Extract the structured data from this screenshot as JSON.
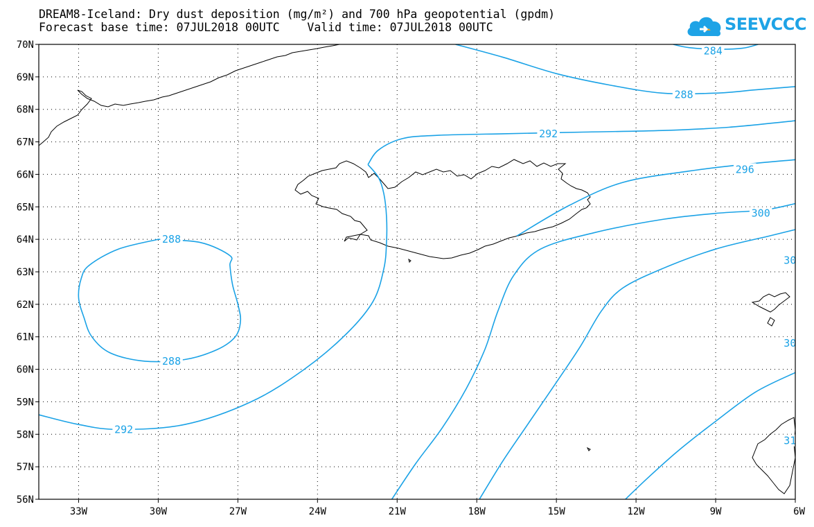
{
  "title": {
    "line1": "DREAM8-Iceland: Dry dust deposition (mg/m²) and 700 hPa geopotential (gpdm)",
    "line2": "Forecast base time: 07JUL2018 00UTC    Valid time: 07JUL2018 00UTC"
  },
  "logo": {
    "text": "SEEVCCC",
    "icon": "cloud-icon",
    "color": "#1ea3e6"
  },
  "colors": {
    "contour": "#1aa2e6",
    "coast": "#000000",
    "grid": "#000000"
  },
  "map": {
    "lon_range": [
      -34.5,
      -6
    ],
    "lat_range": [
      56,
      70
    ],
    "lon_ticks": [
      {
        "value": -33,
        "label": "33W"
      },
      {
        "value": -30,
        "label": "30W"
      },
      {
        "value": -27,
        "label": "27W"
      },
      {
        "value": -24,
        "label": "24W"
      },
      {
        "value": -21,
        "label": "21W"
      },
      {
        "value": -18,
        "label": "18W"
      },
      {
        "value": -15,
        "label": "15W"
      },
      {
        "value": -12,
        "label": "12W"
      },
      {
        "value": -9,
        "label": "9W"
      },
      {
        "value": -6,
        "label": "6W"
      }
    ],
    "lat_ticks": [
      {
        "value": 70,
        "label": "70N"
      },
      {
        "value": 69,
        "label": "69N"
      },
      {
        "value": 68,
        "label": "68N"
      },
      {
        "value": 67,
        "label": "67N"
      },
      {
        "value": 66,
        "label": "66N"
      },
      {
        "value": 65,
        "label": "65N"
      },
      {
        "value": 64,
        "label": "64N"
      },
      {
        "value": 63,
        "label": "63N"
      },
      {
        "value": 62,
        "label": "62N"
      },
      {
        "value": 61,
        "label": "61N"
      },
      {
        "value": 60,
        "label": "60N"
      },
      {
        "value": 59,
        "label": "59N"
      },
      {
        "value": 58,
        "label": "58N"
      },
      {
        "value": 57,
        "label": "57N"
      },
      {
        "value": 56,
        "label": "56N"
      }
    ],
    "contours": [
      {
        "label": "284",
        "labels_at": [
          [
            -9.1,
            69.8
          ]
        ],
        "points": [
          [
            -10.6,
            70
          ],
          [
            -10,
            69.9
          ],
          [
            -9,
            69.85
          ],
          [
            -8,
            69.88
          ],
          [
            -7.4,
            70
          ]
        ]
      },
      {
        "label": "288",
        "labels_at": [
          [
            -10.2,
            68.45
          ]
        ],
        "points": [
          [
            -18.8,
            70
          ],
          [
            -17,
            69.6
          ],
          [
            -15,
            69.1
          ],
          [
            -13,
            68.75
          ],
          [
            -11,
            68.5
          ],
          [
            -9,
            68.5
          ],
          [
            -7.5,
            68.6
          ],
          [
            -6,
            68.7
          ]
        ]
      },
      {
        "label": "292",
        "labels_at": [
          [
            -15.3,
            67.25
          ]
        ],
        "points": [
          [
            -22.1,
            66.3
          ],
          [
            -21.7,
            66.75
          ],
          [
            -20.8,
            67.1
          ],
          [
            -19.5,
            67.2
          ],
          [
            -17,
            67.25
          ],
          [
            -14,
            67.3
          ],
          [
            -11,
            67.35
          ],
          [
            -8.5,
            67.45
          ],
          [
            -6,
            67.65
          ]
        ]
      },
      {
        "label": "296",
        "labels_at": [
          [
            -7.9,
            66.15
          ]
        ],
        "points": [
          [
            -22.1,
            66.3
          ],
          [
            -21.7,
            65.9
          ],
          [
            -21.5,
            65.4
          ],
          [
            -21.4,
            64.7
          ],
          [
            -21.4,
            63.9
          ],
          [
            -21.5,
            63.1
          ],
          [
            -21.9,
            62.1
          ],
          [
            -22.9,
            61.1
          ],
          [
            -24.5,
            60
          ],
          [
            -26.5,
            59
          ],
          [
            -29,
            58.3
          ],
          [
            -31.5,
            58.15
          ],
          [
            -33,
            58.3
          ],
          [
            -34.5,
            58.6
          ]
        ]
      },
      {
        "label": "292",
        "labels_at": [
          [
            -31.3,
            58.15
          ]
        ],
        "points": []
      },
      {
        "label": "300",
        "labels_at": [
          [
            -7.3,
            64.8
          ]
        ],
        "points": [
          [
            -16.5,
            64.1
          ],
          [
            -14.5,
            65.05
          ],
          [
            -12.5,
            65.75
          ],
          [
            -10,
            66.1
          ],
          [
            -8,
            66.3
          ],
          [
            -6,
            66.45
          ]
        ]
      },
      {
        "label": "30",
        "labels_at": [
          [
            -6.2,
            63.35
          ]
        ],
        "points": [
          [
            -21.2,
            56
          ],
          [
            -20.3,
            57.1
          ],
          [
            -19.3,
            58.2
          ],
          [
            -18.4,
            59.4
          ],
          [
            -17.7,
            60.6
          ],
          [
            -17.2,
            61.8
          ],
          [
            -16.6,
            62.9
          ],
          [
            -15.6,
            63.7
          ],
          [
            -13.6,
            64.2
          ],
          [
            -11.1,
            64.6
          ],
          [
            -9,
            64.8
          ],
          [
            -7.2,
            64.9
          ],
          [
            -6,
            65.1
          ]
        ]
      },
      {
        "label": "30",
        "labels_at": [
          [
            -6.2,
            60.8
          ]
        ],
        "points": [
          [
            -17.9,
            56
          ],
          [
            -17,
            57.2
          ],
          [
            -16,
            58.4
          ],
          [
            -15,
            59.6
          ],
          [
            -14.1,
            60.7
          ],
          [
            -13.3,
            61.8
          ],
          [
            -12.5,
            62.5
          ],
          [
            -11,
            63.1
          ],
          [
            -9,
            63.7
          ],
          [
            -7,
            64.1
          ],
          [
            -6,
            64.3
          ]
        ]
      },
      {
        "label": "31",
        "labels_at": [
          [
            -6.2,
            57.8
          ]
        ],
        "points": [
          [
            -12.4,
            56
          ],
          [
            -11.5,
            56.7
          ],
          [
            -10.4,
            57.5
          ],
          [
            -9,
            58.4
          ],
          [
            -7.5,
            59.3
          ],
          [
            -6,
            59.9
          ]
        ]
      },
      {
        "label": "288",
        "labels_at": [
          [
            -29.5,
            64.0
          ],
          [
            -29.5,
            60.25
          ]
        ],
        "points": [
          [
            -30,
            64
          ],
          [
            -28.4,
            63.9
          ],
          [
            -27.3,
            63.5
          ],
          [
            -27.3,
            63.2
          ],
          [
            -27.2,
            62.6
          ],
          [
            -27,
            62
          ],
          [
            -26.9,
            61.5
          ],
          [
            -27.1,
            61
          ],
          [
            -27.8,
            60.6
          ],
          [
            -29,
            60.3
          ],
          [
            -30.5,
            60.25
          ],
          [
            -31.8,
            60.5
          ],
          [
            -32.5,
            61
          ],
          [
            -32.8,
            61.6
          ],
          [
            -33,
            62.2
          ],
          [
            -32.9,
            62.8
          ],
          [
            -32.6,
            63.2
          ],
          [
            -31.5,
            63.7
          ],
          [
            -30,
            64
          ]
        ]
      }
    ]
  }
}
